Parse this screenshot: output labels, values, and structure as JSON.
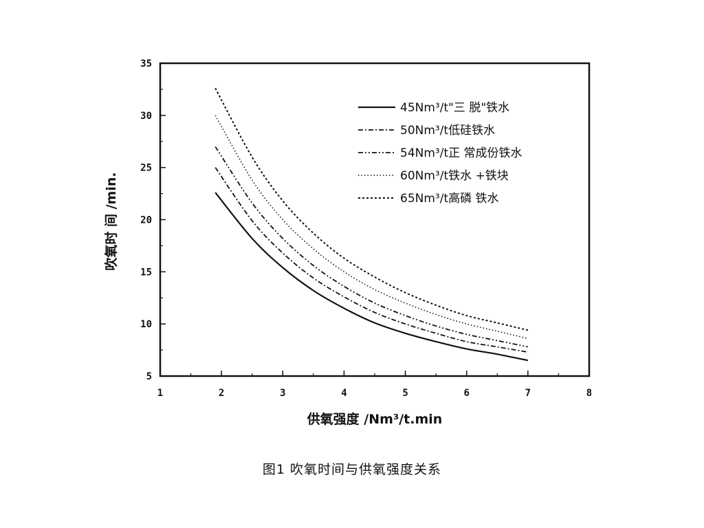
{
  "chart_data": {
    "type": "line",
    "xlabel": "供氧强度   /Nm³/t.min",
    "ylabel": "吹氧时 间  /min.",
    "xlim": [
      1,
      8
    ],
    "ylim": [
      5,
      35
    ],
    "xticks": [
      "1",
      "2",
      "3",
      "4",
      "5",
      "6",
      "7",
      "8"
    ],
    "yticks": [
      "5",
      "10",
      "15",
      "20",
      "25",
      "30",
      "35"
    ],
    "grid": false,
    "legend_position": "top-right",
    "x": [
      1.9,
      2.5,
      3.0,
      3.5,
      4.0,
      4.5,
      5.0,
      5.5,
      6.0,
      6.5,
      7.0
    ],
    "series": [
      {
        "name": "45Nm³/t\"三 脱\"铁水",
        "style": "solid",
        "values": [
          22.6,
          18.2,
          15.4,
          13.2,
          11.5,
          10.1,
          9.1,
          8.3,
          7.6,
          7.1,
          6.5
        ]
      },
      {
        "name": "50Nm³/t低硅铁水",
        "style": "dashdot",
        "values": [
          25.0,
          19.9,
          16.8,
          14.4,
          12.6,
          11.1,
          10.0,
          9.1,
          8.3,
          7.8,
          7.3
        ]
      },
      {
        "name": "54Nm³/t正 常成份铁水",
        "style": "dashdotdot",
        "values": [
          27.0,
          21.6,
          18.2,
          15.6,
          13.6,
          12.0,
          10.8,
          9.8,
          9.0,
          8.4,
          7.8
        ]
      },
      {
        "name": "60Nm³/t铁水  +铁块",
        "style": "dotted",
        "values": [
          30.0,
          23.8,
          20.0,
          17.2,
          15.0,
          13.3,
          12.0,
          10.9,
          10.0,
          9.3,
          8.6
        ]
      },
      {
        "name": "65Nm³/t高磷 铁水",
        "style": "dashed",
        "values": [
          32.6,
          26.0,
          21.8,
          18.7,
          16.3,
          14.5,
          13.0,
          11.8,
          10.8,
          10.1,
          9.4
        ]
      }
    ]
  },
  "caption": "图1    吹氧时间与供氧强度关系",
  "colors": {
    "line": "#111111",
    "background": "#ffffff"
  }
}
